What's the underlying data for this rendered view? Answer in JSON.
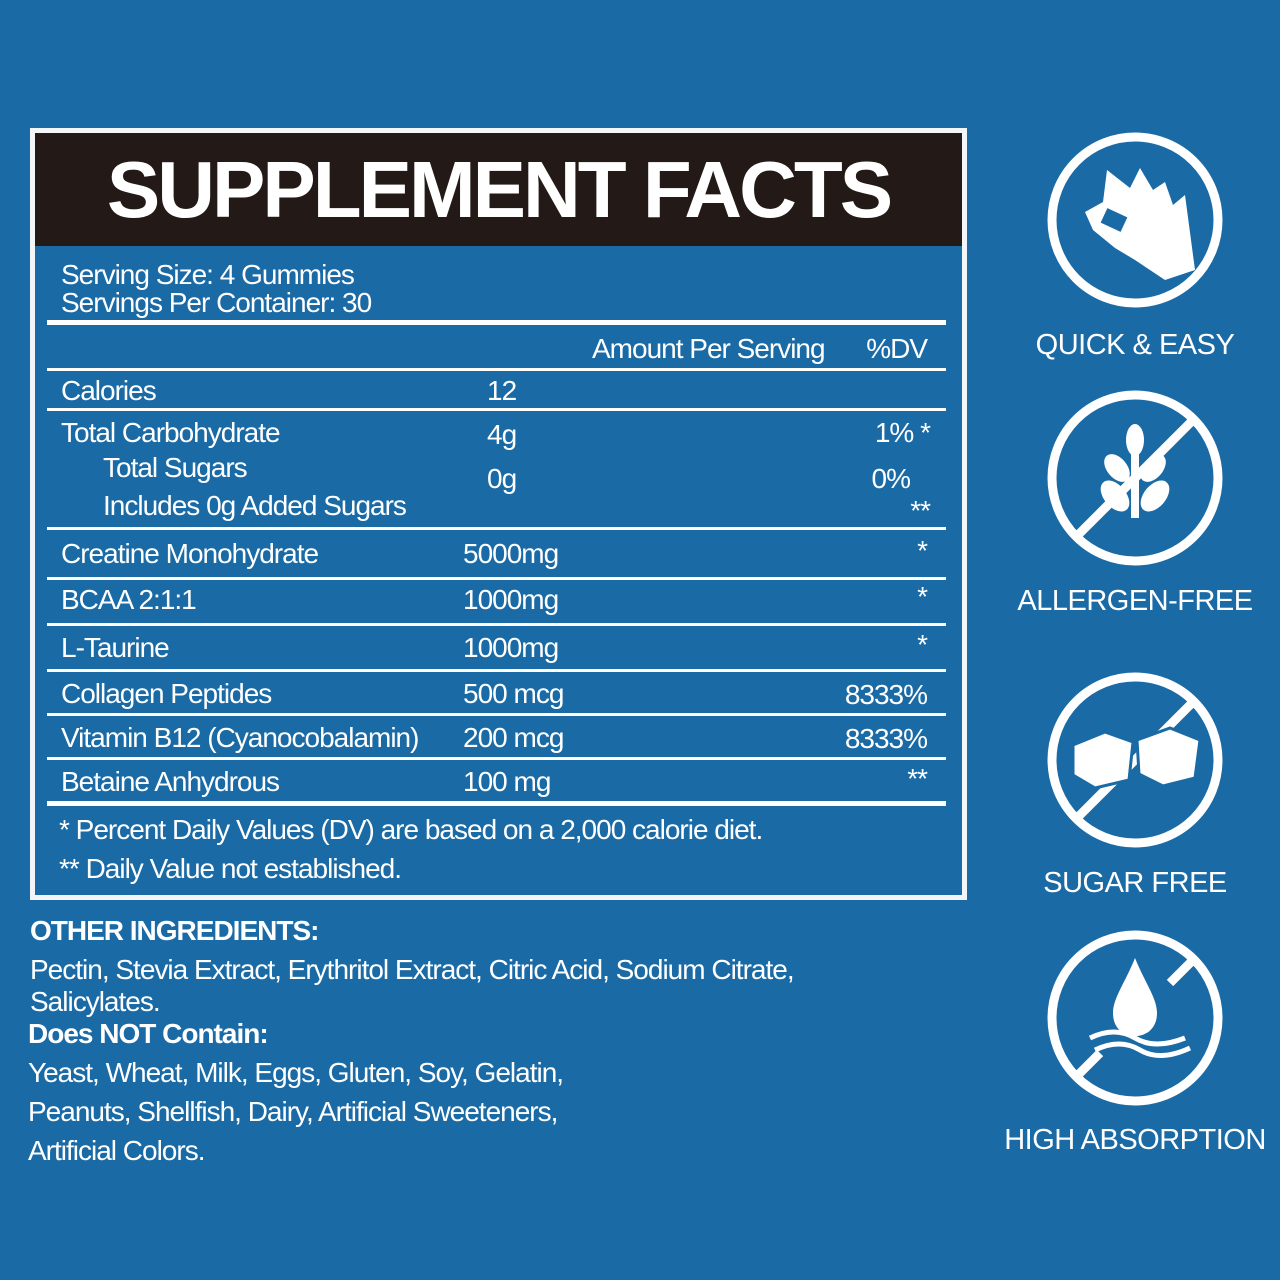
{
  "colors": {
    "background": "#1a6aa6",
    "title_bar": "#231a17",
    "text": "#ffffff"
  },
  "facts": {
    "title": "SUPPLEMENT FACTS",
    "serving_size": "Serving Size: 4 Gummies",
    "servings_per_container": "Servings Per Container: 30",
    "col_amount": "Amount Per Serving",
    "col_dv": "%DV",
    "calories": {
      "name": "Calories",
      "amount": "12"
    },
    "carbs": {
      "name": "Total Carbohydrate",
      "amount": "4g",
      "dv": "1% *"
    },
    "sugars": {
      "name": "Total Sugars",
      "amount": "0g",
      "dv": "0%"
    },
    "added_sugars": {
      "name": "Includes 0g Added Sugars",
      "dv": "**"
    },
    "rows": [
      {
        "name": "Creatine Monohydrate",
        "amount": "5000mg",
        "dv": "*"
      },
      {
        "name": "BCAA 2:1:1",
        "amount": "1000mg",
        "dv": "*"
      },
      {
        "name": "L-Taurine",
        "amount": "1000mg",
        "dv": "*"
      },
      {
        "name": "Collagen Peptides",
        "amount": "500 mcg",
        "dv": "8333%"
      },
      {
        "name": "Vitamin B12 (Cyanocobalamin)",
        "amount": "200 mcg",
        "dv": "8333%"
      },
      {
        "name": "Betaine Anhydrous",
        "amount": "100 mg",
        "dv": "**"
      }
    ],
    "footnote1": "* Percent Daily Values (DV) are based on a 2,000 calorie diet.",
    "footnote2": "** Daily Value not established."
  },
  "other": {
    "heading": "OTHER INGREDIENTS:",
    "line1": "Pectin, Stevia Extract, Erythritol Extract, Citric Acid, Sodium Citrate,",
    "line2": "Salicylates.",
    "not_contain_heading": "Does NOT Contain:",
    "nc1": "Yeast, Wheat, Milk, Eggs, Gluten, Soy, Gelatin,",
    "nc2": "Peanuts, Shellfish, Dairy, Artificial Sweeteners,",
    "nc3": "Artificial Colors."
  },
  "badges": [
    {
      "icon": "ok-hand-icon",
      "label": "QUICK & EASY"
    },
    {
      "icon": "no-wheat-icon",
      "label": "ALLERGEN-FREE"
    },
    {
      "icon": "no-sugar-cubes-icon",
      "label": "SUGAR FREE"
    },
    {
      "icon": "water-drop-icon",
      "label": "HIGH ABSORPTION"
    }
  ]
}
